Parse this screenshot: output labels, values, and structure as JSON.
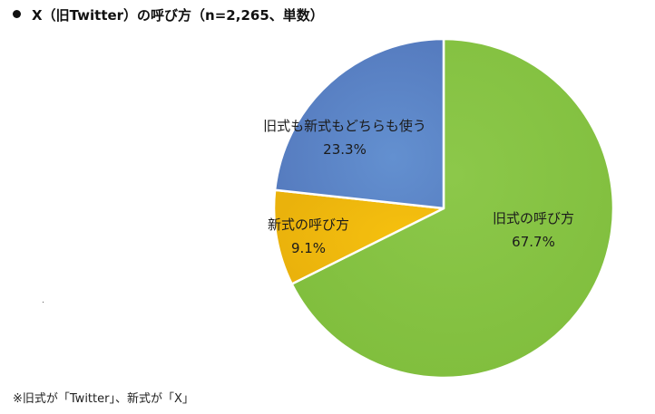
{
  "title": "X（旧Twitter）の呼び方（n=2,265、単数）",
  "note": "※旧式が「Twitter」、新式が「X」",
  "chart_data": {
    "type": "pie",
    "title": "X（旧Twitter）の呼び方（n=2,265、単数）",
    "categories": [
      "旧式の呼び方",
      "新式の呼び方",
      "旧式も新式もどちらも使う"
    ],
    "values": [
      67.7,
      9.1,
      23.3
    ],
    "colors": [
      "#86c342",
      "#f2bc0f",
      "#5b85c6"
    ],
    "start_angle": "12 o'clock, clockwise",
    "legend": "none (data labels on slices)",
    "labels": [
      {
        "name": "旧式の呼び方",
        "value": "67.7%"
      },
      {
        "name": "新式の呼び方",
        "value": "9.1%"
      },
      {
        "name": "旧式も新式もどちらも使う",
        "value": "23.3%"
      }
    ]
  }
}
